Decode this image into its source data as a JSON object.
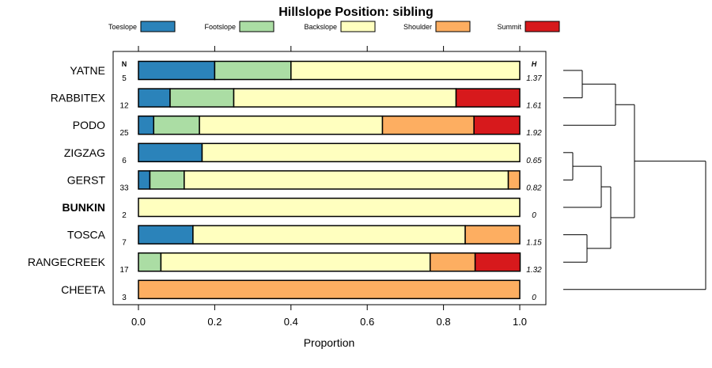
{
  "chart_data": {
    "type": "bar",
    "stacked": true,
    "orientation": "horizontal",
    "title": "Hillslope Position: sibling",
    "xlabel": "Proportion",
    "ylabel": "",
    "xlim": [
      0,
      1
    ],
    "xticks": [
      "0.0",
      "0.2",
      "0.4",
      "0.6",
      "0.8",
      "1.0"
    ],
    "legend": {
      "placement": "top"
    },
    "n_header": "N",
    "h_header": "H",
    "highlight": "BUNKIN",
    "categories": [
      "YATNE",
      "RABBITEX",
      "PODO",
      "ZIGZAG",
      "GERST",
      "BUNKIN",
      "TOSCA",
      "RANGECREEK",
      "CHEETA"
    ],
    "n": [
      "5",
      "12",
      "25",
      "6",
      "33",
      "2",
      "7",
      "17",
      "3"
    ],
    "h": [
      "1.37",
      "1.61",
      "1.92",
      "0.65",
      "0.82",
      "0",
      "1.15",
      "1.32",
      "0"
    ],
    "series": [
      {
        "name": "Toeslope",
        "color": "#2b83ba",
        "values": [
          0.2,
          0.083,
          0.04,
          0.167,
          0.03,
          0,
          0.143,
          0,
          0
        ]
      },
      {
        "name": "Footslope",
        "color": "#abdda4",
        "values": [
          0.2,
          0.167,
          0.12,
          0,
          0.09,
          0,
          0,
          0.059,
          0
        ]
      },
      {
        "name": "Backslope",
        "color": "#ffffbf",
        "values": [
          0.6,
          0.583,
          0.48,
          0.833,
          0.85,
          1.0,
          0.714,
          0.706,
          0
        ]
      },
      {
        "name": "Shoulder",
        "color": "#fdae61",
        "values": [
          0,
          0,
          0.24,
          0,
          0.03,
          0,
          0.143,
          0.118,
          1.0
        ]
      },
      {
        "name": "Summit",
        "color": "#d7191c",
        "values": [
          0,
          0.167,
          0.12,
          0,
          0,
          0,
          0,
          0.118,
          0
        ]
      }
    ],
    "dendrogram": {
      "description": "hierarchical clustering of rows",
      "merges": [
        [
          "YATNE",
          "RABBITEX",
          0.04
        ],
        [
          "ZIGZAG",
          "GERST",
          0.02
        ],
        [
          "TOSCA",
          "RANGECREEK",
          0.05
        ],
        [
          "ZIGZAG+GERST",
          "BUNKIN",
          0.08
        ],
        [
          "ZIGZAG+GERST+BUNKIN",
          "TOSCA+RANGECREEK",
          0.1
        ],
        [
          "YATNE+RABBITEX",
          "PODO",
          0.11
        ],
        [
          "YATNE+RABBITEX+PODO",
          "ZIGZAG..RANGECREEK",
          0.15
        ],
        [
          "all",
          "CHEETA",
          0.3
        ]
      ]
    }
  }
}
